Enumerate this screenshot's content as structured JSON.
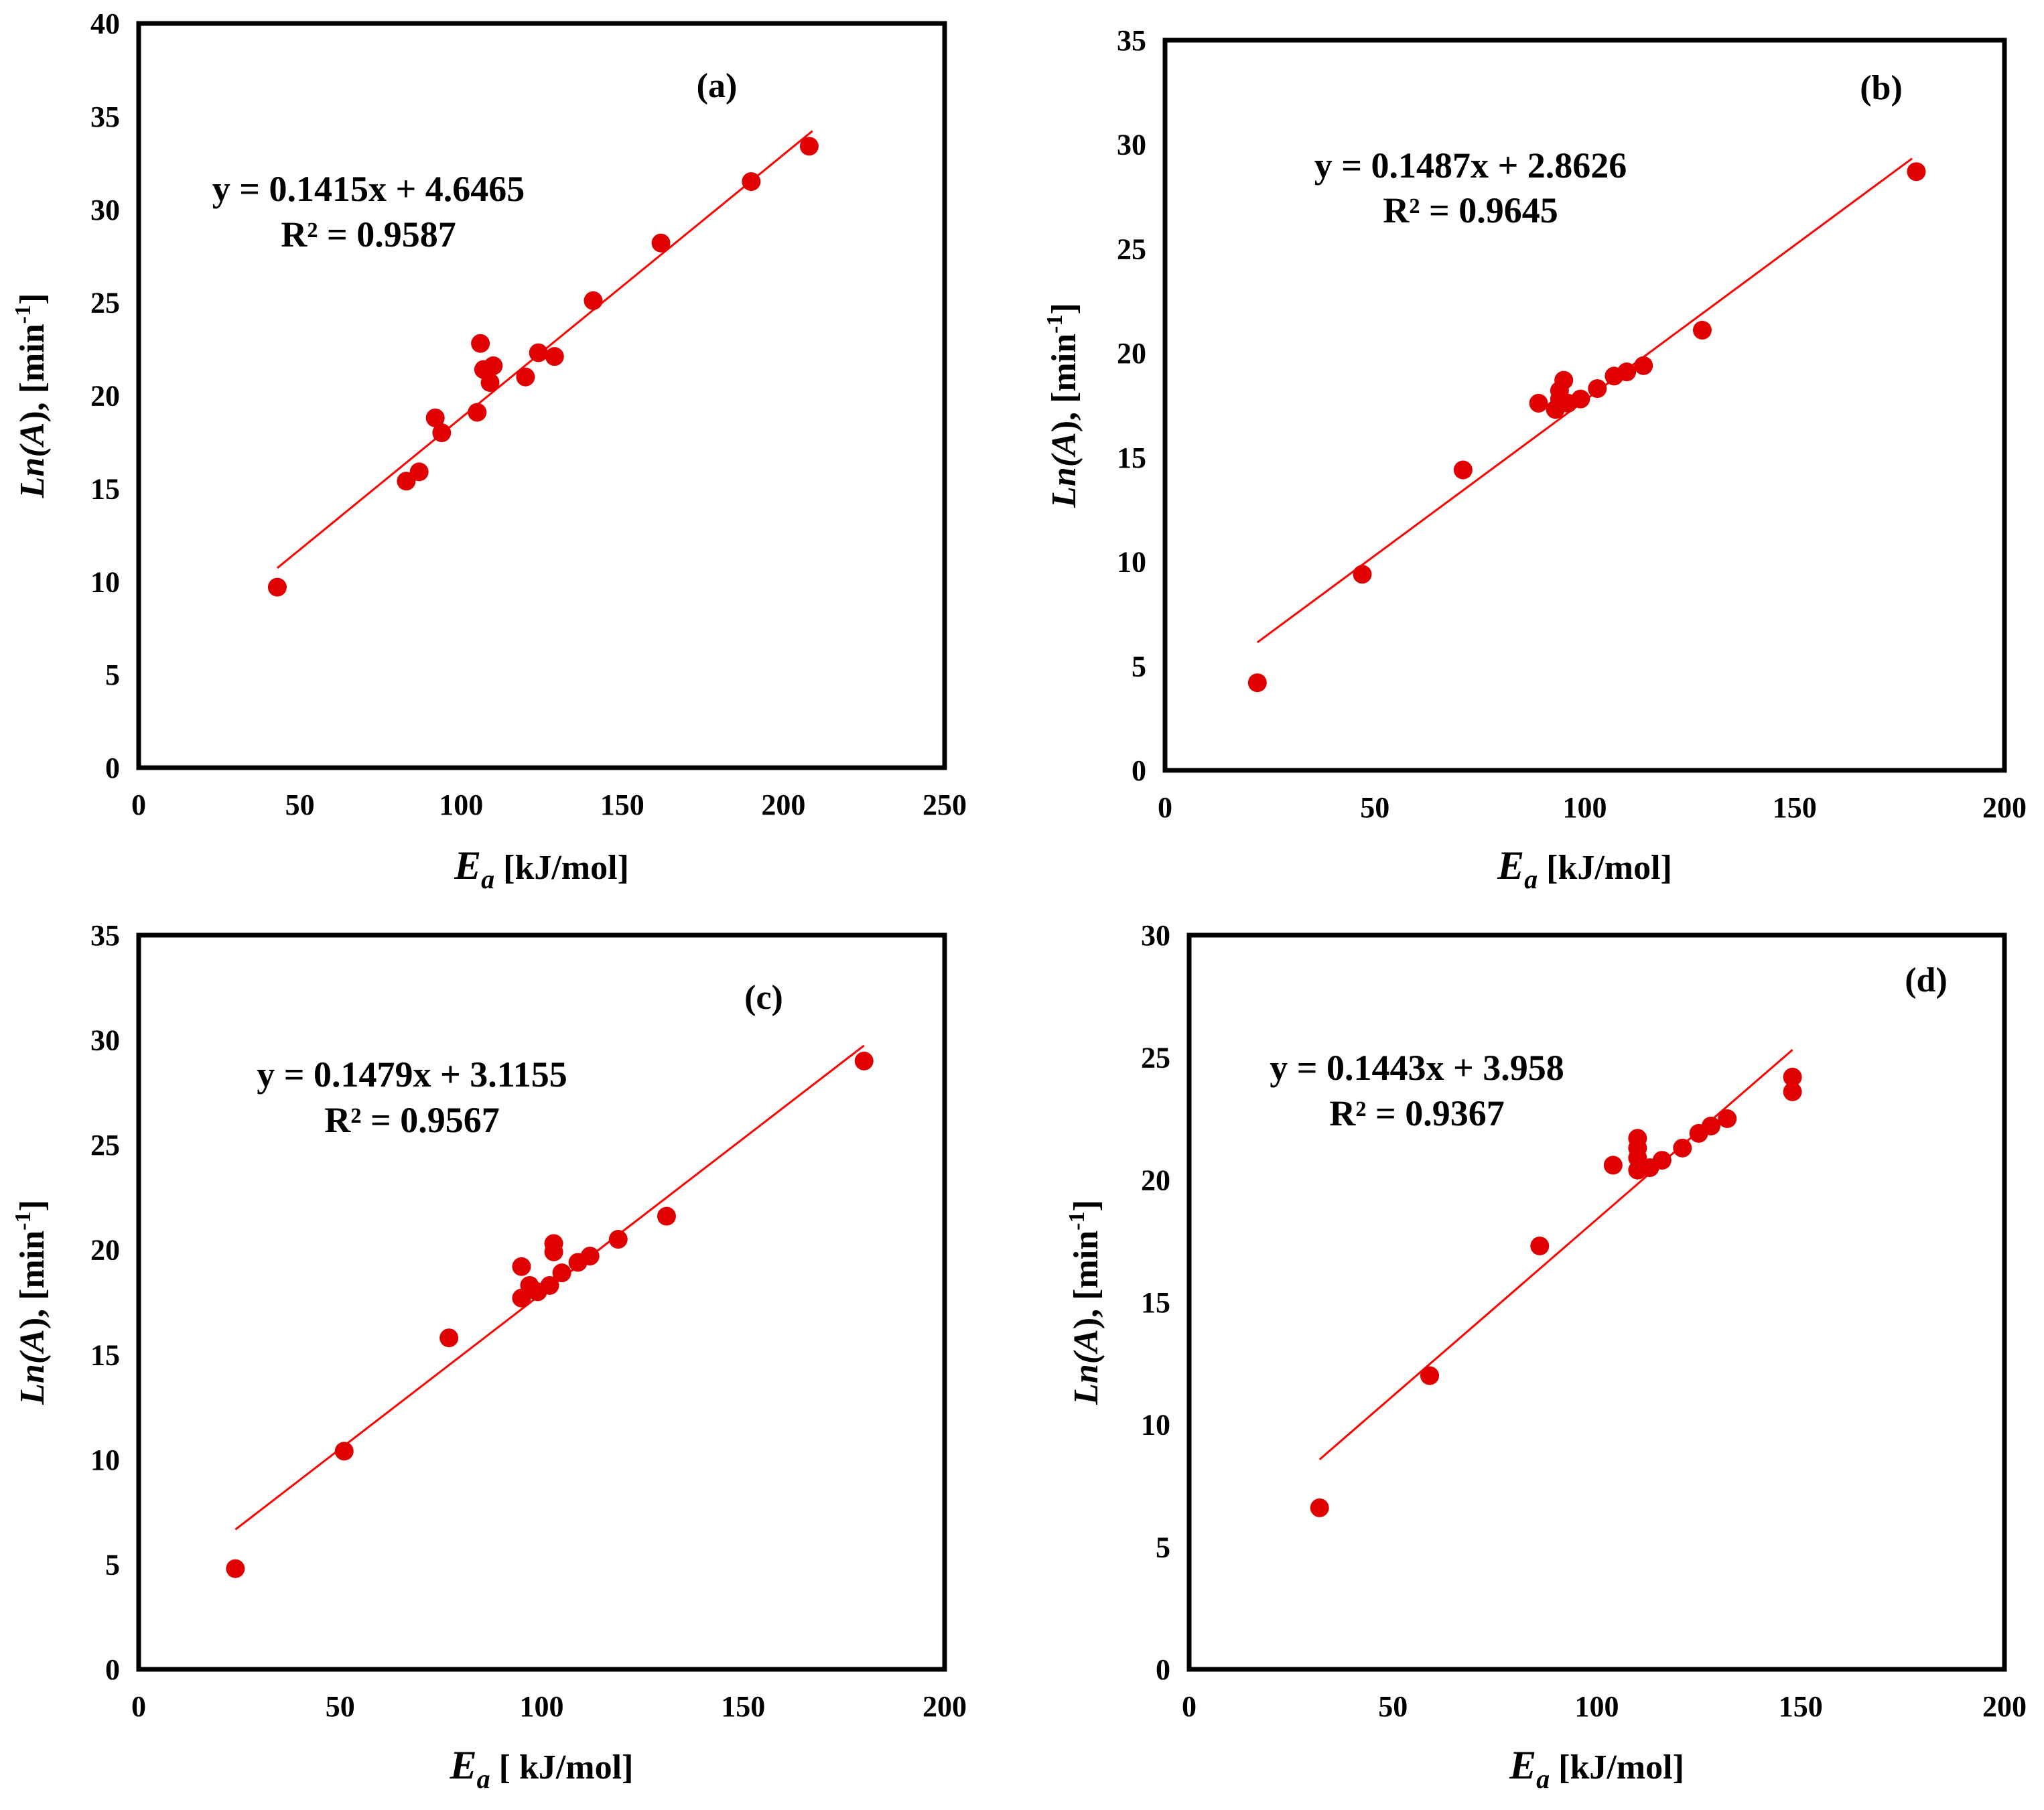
{
  "chart_data": [
    {
      "type": "scatter",
      "panel_label": "(a)",
      "xlabel_italic": "E",
      "xlabel_sub": "a",
      "xlabel_unit": " [kJ/mol]",
      "ylabel_prefix": "Ln(",
      "ylabel_italic": "A",
      "ylabel_mid": "), [min",
      "ylabel_sup": "-1",
      "ylabel_end": "]",
      "xlim": [
        0,
        250
      ],
      "xticks": [
        0,
        50,
        100,
        150,
        200,
        250
      ],
      "ylim": [
        0,
        40
      ],
      "yticks": [
        0,
        5,
        10,
        15,
        20,
        25,
        30,
        35,
        40
      ],
      "equation": "y = 0.1415x + 4.6465",
      "r_squared": "R² = 0.9587",
      "trendline": {
        "slope": 0.1415,
        "intercept": 4.6465,
        "x_start": 43,
        "x_end": 209
      },
      "marker_color": "#e00000",
      "trendline_color": "#ff0000",
      "points": [
        [
          43,
          9.7
        ],
        [
          83,
          15.4
        ],
        [
          87,
          15.9
        ],
        [
          92,
          18.8
        ],
        [
          94,
          18.0
        ],
        [
          105,
          19.1
        ],
        [
          106,
          22.8
        ],
        [
          107,
          21.4
        ],
        [
          109,
          20.7
        ],
        [
          110,
          21.6
        ],
        [
          120,
          21.0
        ],
        [
          124,
          22.3
        ],
        [
          129,
          22.1
        ],
        [
          141,
          25.1
        ],
        [
          162,
          28.2
        ],
        [
          190,
          31.5
        ],
        [
          208,
          33.4
        ]
      ]
    },
    {
      "type": "scatter",
      "panel_label": "(b)",
      "xlabel_italic": "E",
      "xlabel_sub": "a",
      "xlabel_unit": " [kJ/mol]",
      "ylabel_prefix": "Ln(",
      "ylabel_italic": "A",
      "ylabel_mid": "), [min",
      "ylabel_sup": "-1",
      "ylabel_end": "]",
      "xlim": [
        0,
        200
      ],
      "xticks": [
        0,
        50,
        100,
        150,
        200
      ],
      "ylim": [
        0,
        35
      ],
      "yticks": [
        0,
        5,
        10,
        15,
        20,
        25,
        30,
        35
      ],
      "equation": "y = 0.1487x + 2.8626",
      "r_squared": "R² = 0.9645",
      "trendline": {
        "slope": 0.1487,
        "intercept": 2.8626,
        "x_start": 22,
        "x_end": 178
      },
      "marker_color": "#e00000",
      "trendline_color": "#ff0000",
      "points": [
        [
          22,
          4.2
        ],
        [
          47,
          9.4
        ],
        [
          71,
          14.4
        ],
        [
          89,
          17.6
        ],
        [
          93,
          17.3
        ],
        [
          94,
          17.8
        ],
        [
          94,
          18.2
        ],
        [
          95,
          18.7
        ],
        [
          96,
          17.6
        ],
        [
          99,
          17.8
        ],
        [
          103,
          18.3
        ],
        [
          107,
          18.9
        ],
        [
          110,
          19.1
        ],
        [
          114,
          19.4
        ],
        [
          128,
          21.1
        ],
        [
          179,
          28.7
        ]
      ]
    },
    {
      "type": "scatter",
      "panel_label": "(c)",
      "xlabel_italic": "E",
      "xlabel_sub": "a",
      "xlabel_unit": " [ kJ/mol]",
      "ylabel_prefix": "Ln(",
      "ylabel_italic": "A",
      "ylabel_mid": "), [min",
      "ylabel_sup": "-1",
      "ylabel_end": "]",
      "xlim": [
        0,
        200
      ],
      "xticks": [
        0,
        50,
        100,
        150,
        200
      ],
      "ylim": [
        0,
        35
      ],
      "yticks": [
        0,
        5,
        10,
        15,
        20,
        25,
        30,
        35
      ],
      "equation": "y = 0.1479x + 3.1155",
      "r_squared": "R² = 0.9567",
      "trendline": {
        "slope": 0.1479,
        "intercept": 3.1155,
        "x_start": 24,
        "x_end": 180
      },
      "marker_color": "#e00000",
      "trendline_color": "#ff0000",
      "points": [
        [
          24,
          4.8
        ],
        [
          51,
          10.4
        ],
        [
          77,
          15.8
        ],
        [
          95,
          17.7
        ],
        [
          95,
          19.2
        ],
        [
          97,
          18.3
        ],
        [
          99,
          18.0
        ],
        [
          102,
          18.3
        ],
        [
          103,
          19.9
        ],
        [
          103,
          20.3
        ],
        [
          105,
          18.9
        ],
        [
          109,
          19.4
        ],
        [
          112,
          19.7
        ],
        [
          119,
          20.5
        ],
        [
          131,
          21.6
        ],
        [
          180,
          29.0
        ]
      ]
    },
    {
      "type": "scatter",
      "panel_label": "(d)",
      "xlabel_italic": "E",
      "xlabel_sub": "a",
      "xlabel_unit": " [kJ/mol]",
      "ylabel_prefix": "Ln(",
      "ylabel_italic": "A",
      "ylabel_mid": "), [min",
      "ylabel_sup": "-1",
      "ylabel_end": "]",
      "xlim": [
        0,
        200
      ],
      "xticks": [
        0,
        50,
        100,
        150,
        200
      ],
      "ylim": [
        0,
        30
      ],
      "yticks": [
        0,
        5,
        10,
        15,
        20,
        25,
        30
      ],
      "equation": "y = 0.1443x + 3.958",
      "r_squared": "R² = 0.9367",
      "trendline": {
        "slope": 0.1443,
        "intercept": 3.958,
        "x_start": 32,
        "x_end": 148
      },
      "marker_color": "#e00000",
      "trendline_color": "#ff0000",
      "points": [
        [
          32,
          6.6
        ],
        [
          59,
          12.0
        ],
        [
          86,
          17.3
        ],
        [
          104,
          20.6
        ],
        [
          110,
          20.4
        ],
        [
          110,
          20.9
        ],
        [
          110,
          21.3
        ],
        [
          110,
          21.7
        ],
        [
          113,
          20.5
        ],
        [
          116,
          20.8
        ],
        [
          121,
          21.3
        ],
        [
          125,
          21.9
        ],
        [
          128,
          22.2
        ],
        [
          132,
          22.5
        ],
        [
          148,
          24.2
        ],
        [
          148,
          23.6
        ]
      ]
    }
  ]
}
